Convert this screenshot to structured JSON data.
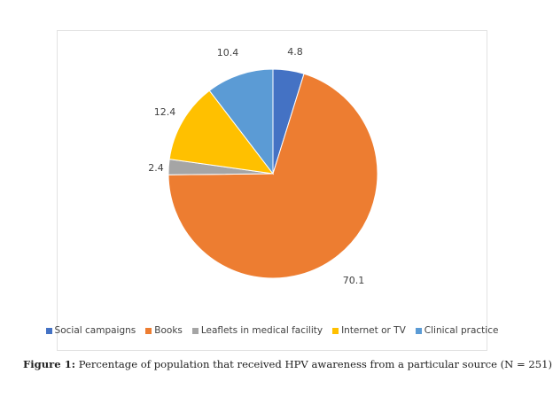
{
  "caption": {
    "label": "Figure 1:",
    "text": "Percentage of population that received HPV awareness from a particular source (N = 251)"
  },
  "chart_data": {
    "type": "pie",
    "title": "",
    "start_angle_deg": 0,
    "direction": "clockwise",
    "legend_position": "bottom",
    "slices": [
      {
        "name": "Social campaigns",
        "value": 4.8,
        "label": "4.8",
        "color": "#4472C4"
      },
      {
        "name": "Books",
        "value": 70.1,
        "label": "70.1",
        "color": "#ED7D31"
      },
      {
        "name": "Leaflets in medical facility",
        "value": 2.4,
        "label": "2.4",
        "color": "#A5A5A5"
      },
      {
        "name": "Internet or TV",
        "value": 12.4,
        "label": "12.4",
        "color": "#FFC000"
      },
      {
        "name": "Clinical practice",
        "value": 10.4,
        "label": "10.4",
        "color": "#5B9BD5"
      }
    ]
  }
}
